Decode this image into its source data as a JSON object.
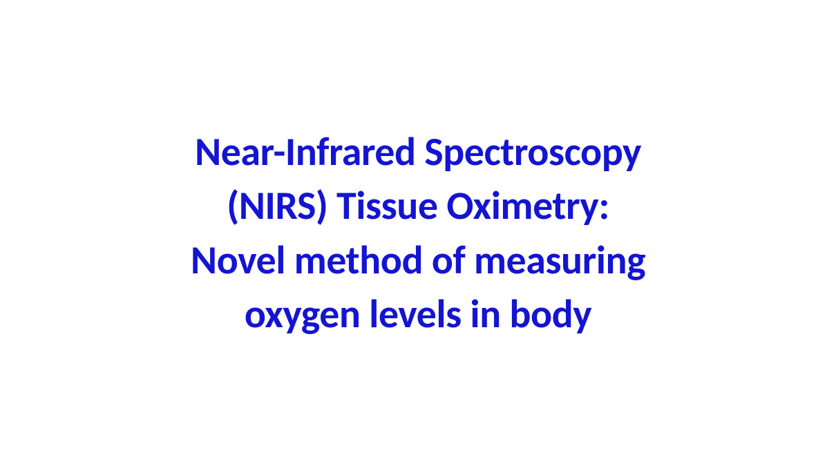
{
  "slide": {
    "title_line1": "Near-Infrared Spectroscopy",
    "title_line2": "(NIRS) Tissue Oximetry:",
    "title_line3": "Novel method of measuring",
    "title_line4": "oxygen levels in body",
    "text_color": "#1414d2",
    "background_color": "#ffffff",
    "font_size": 58,
    "font_weight": 700,
    "font_family": "Calibri",
    "line_height": 1.35,
    "alignment": "center"
  }
}
